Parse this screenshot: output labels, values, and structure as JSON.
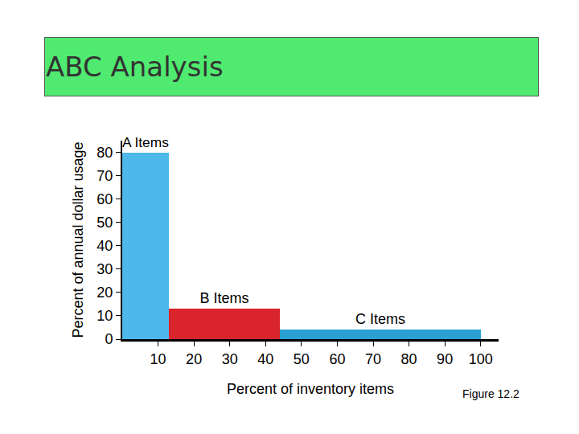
{
  "chart_data": {
    "type": "bar",
    "title": "ABC Analysis",
    "x_label": "Percent of inventory items",
    "y_label": "Percent of annual dollar usage",
    "categories": [
      "A Items",
      "B Items",
      "C Items"
    ],
    "bins": [
      0,
      13,
      44,
      100
    ],
    "values": [
      80,
      13,
      4
    ],
    "colors": [
      "#4db8ea",
      "#d9242b",
      "#2ba0d2"
    ],
    "xlim": [
      0,
      105
    ],
    "xticks": [
      10,
      20,
      30,
      40,
      50,
      60,
      70,
      80,
      90,
      100
    ],
    "ylim": [
      0,
      85
    ],
    "yticks": [
      0,
      10,
      20,
      30,
      40,
      50,
      60,
      70,
      80
    ],
    "grid": false,
    "data_labels": false,
    "annotations": [
      "Figure 12.2"
    ]
  }
}
